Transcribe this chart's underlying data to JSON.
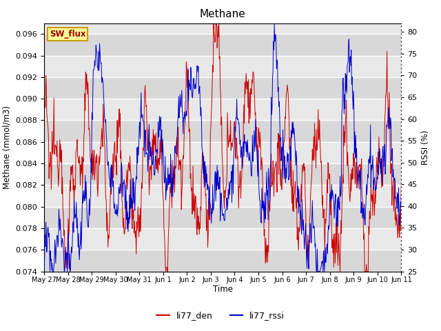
{
  "title": "Methane",
  "ylabel_left": "Methane (mmol/m3)",
  "ylabel_right": "RSSI (%)",
  "xlabel": "Time",
  "ylim_left": [
    0.074,
    0.097
  ],
  "ylim_right": [
    25,
    82
  ],
  "background_color": "#ffffff",
  "plot_bg_color": "#e8e8e8",
  "grid_color": "#ffffff",
  "line_color_den": "#cc0000",
  "line_color_rssi": "#0000cc",
  "legend_labels": [
    "li77_den",
    "li77_rssi"
  ],
  "watermark_text": "SW_flux",
  "watermark_bg": "#ffff99",
  "watermark_border": "#cc9900",
  "tick_labels": [
    "May 27",
    "May 28",
    "May 29",
    "May 30",
    "May 31",
    "Jun 1",
    "Jun 2",
    "Jun 3",
    "Jun 4",
    "Jun 5",
    "Jun 6",
    "Jun 7",
    "Jun 8",
    "Jun 9",
    "Jun 10",
    "Jun 11"
  ],
  "yticks_left": [
    0.074,
    0.076,
    0.078,
    0.08,
    0.082,
    0.084,
    0.086,
    0.088,
    0.09,
    0.092,
    0.094,
    0.096
  ],
  "yticks_right": [
    25,
    30,
    35,
    40,
    45,
    50,
    55,
    60,
    65,
    70,
    75,
    80
  ],
  "n_points": 800
}
